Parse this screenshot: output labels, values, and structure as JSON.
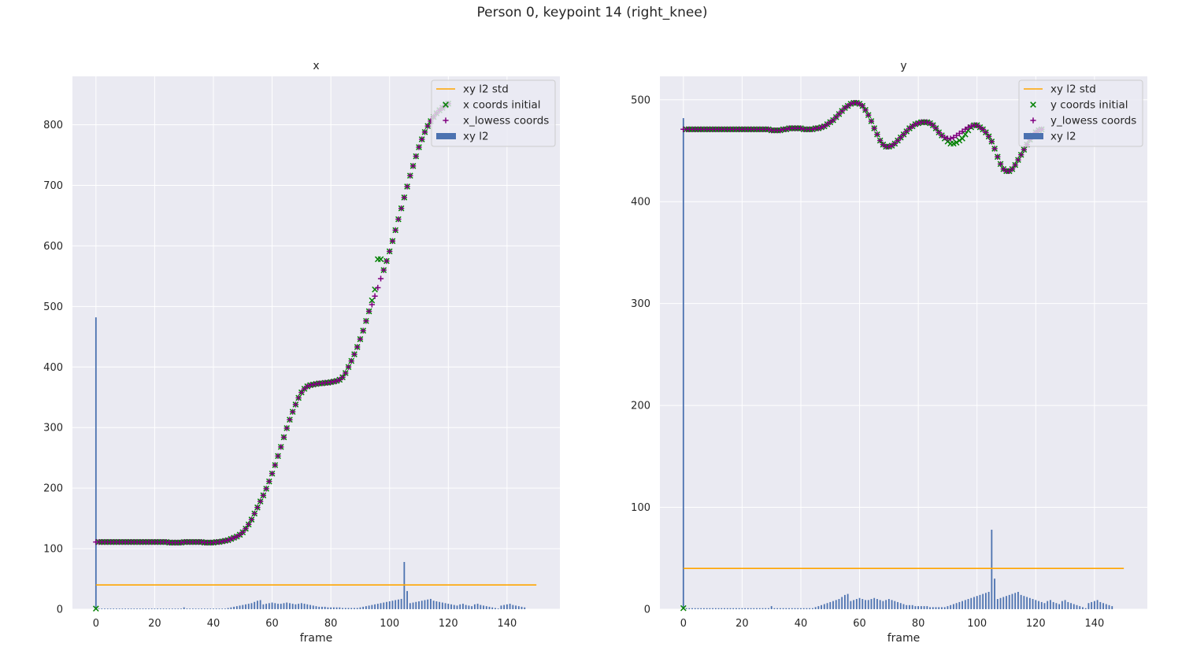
{
  "figure_title": "Person 0, keypoint 14 (right_knee)",
  "colors": {
    "axes_bg": "#eaeaf2",
    "grid": "#ffffff",
    "std_line": "orange",
    "initial_marker": "green",
    "lowess_marker": "purple",
    "bar": "#4c72b0"
  },
  "chart_data": [
    {
      "type": "line+scatter+bar",
      "title": "x",
      "xlabel": "frame",
      "ylabel": "",
      "xlim": [
        -8,
        158
      ],
      "ylim": [
        0,
        880
      ],
      "xticks": [
        0,
        20,
        40,
        60,
        80,
        100,
        120,
        140
      ],
      "yticks": [
        0,
        100,
        200,
        300,
        400,
        500,
        600,
        700,
        800
      ],
      "grid": true,
      "legend_position": "top-right",
      "legend": [
        "xy l2 std",
        "x coords initial",
        "x_lowess coords",
        "xy l2"
      ],
      "series": [
        {
          "name": "xy l2 std",
          "kind": "line",
          "y_constant": 40,
          "x_range": [
            0,
            150
          ]
        },
        {
          "name": "x coords initial",
          "kind": "scatter",
          "marker": "x",
          "x_start": 0,
          "x_step": 1,
          "values": [
            1,
            111,
            111,
            111,
            111,
            111,
            111,
            111,
            111,
            111,
            111,
            111,
            111,
            111,
            111,
            111,
            111,
            111,
            111,
            111,
            111,
            111,
            111,
            111,
            111,
            110,
            110,
            110,
            110,
            110,
            111,
            111,
            111,
            111,
            111,
            111,
            111,
            110,
            110,
            110,
            110,
            111,
            111,
            112,
            113,
            114,
            116,
            118,
            120,
            123,
            127,
            133,
            140,
            148,
            158,
            168,
            178,
            188,
            199,
            211,
            224,
            238,
            253,
            268,
            284,
            299,
            313,
            326,
            338,
            349,
            358,
            364,
            368,
            370,
            371,
            372,
            373,
            373,
            374,
            374,
            375,
            376,
            377,
            379,
            383,
            390,
            400,
            410,
            421,
            433,
            446,
            460,
            476,
            492,
            510,
            528,
            578,
            578,
            560,
            575,
            591,
            608,
            626,
            644,
            662,
            680,
            698,
            716,
            732,
            748,
            763,
            776,
            788,
            798,
            806,
            813,
            819,
            824,
            828,
            832,
            835
          ]
        },
        {
          "name": "x_lowess coords",
          "kind": "scatter",
          "marker": "+",
          "x_start": 0,
          "x_step": 1,
          "values": [
            111,
            111,
            111,
            111,
            111,
            111,
            111,
            111,
            111,
            111,
            111,
            111,
            111,
            111,
            111,
            111,
            111,
            111,
            111,
            111,
            111,
            111,
            111,
            111,
            111,
            110,
            110,
            110,
            110,
            110,
            111,
            111,
            111,
            111,
            111,
            111,
            111,
            110,
            110,
            110,
            110,
            111,
            111,
            112,
            113,
            114,
            116,
            118,
            120,
            123,
            127,
            133,
            140,
            148,
            158,
            168,
            178,
            188,
            199,
            211,
            224,
            238,
            253,
            268,
            284,
            299,
            313,
            326,
            338,
            349,
            358,
            364,
            368,
            370,
            371,
            372,
            373,
            373,
            374,
            374,
            375,
            376,
            377,
            379,
            383,
            390,
            400,
            410,
            421,
            433,
            446,
            460,
            476,
            492,
            503,
            517,
            531,
            546,
            560,
            575,
            591,
            608,
            626,
            644,
            662,
            680,
            698,
            716,
            732,
            748,
            763,
            776,
            788,
            798,
            806,
            813,
            819,
            824,
            828,
            832,
            835
          ]
        },
        {
          "name": "xy l2",
          "kind": "bar",
          "x_start": 0,
          "x_step": 1,
          "values": [
            482,
            1,
            1,
            1,
            1,
            1,
            1,
            1,
            1,
            1,
            1,
            1,
            1,
            1,
            1,
            1,
            1,
            1,
            1,
            1,
            1,
            1,
            1,
            1,
            1,
            1,
            1,
            1,
            1,
            1,
            3,
            1,
            1,
            1,
            1,
            1,
            1,
            1,
            1,
            1,
            1,
            1,
            1,
            1,
            1,
            2,
            3,
            4,
            5,
            6,
            7,
            8,
            9,
            10,
            12,
            14,
            15,
            8,
            9,
            10,
            11,
            10,
            9,
            9,
            10,
            11,
            10,
            9,
            8,
            9,
            10,
            9,
            8,
            7,
            6,
            5,
            4,
            4,
            4,
            3,
            3,
            3,
            3,
            3,
            2,
            2,
            2,
            2,
            2,
            2,
            3,
            4,
            5,
            6,
            7,
            8,
            9,
            10,
            11,
            12,
            13,
            14,
            15,
            16,
            17,
            78,
            30,
            10,
            11,
            12,
            13,
            14,
            15,
            16,
            17,
            14,
            13,
            12,
            11,
            10,
            9,
            8,
            7,
            6,
            8,
            9,
            7,
            6,
            5,
            8,
            9,
            7,
            6,
            5,
            4,
            3,
            2,
            1,
            6,
            7,
            8,
            9,
            7,
            6,
            5,
            4,
            3
          ]
        }
      ]
    },
    {
      "type": "line+scatter+bar",
      "title": "y",
      "xlabel": "frame",
      "ylabel": "",
      "xlim": [
        -8,
        158
      ],
      "ylim": [
        0,
        523
      ],
      "xticks": [
        0,
        20,
        40,
        60,
        80,
        100,
        120,
        140
      ],
      "yticks": [
        0,
        100,
        200,
        300,
        400,
        500
      ],
      "grid": true,
      "legend_position": "top-right",
      "legend": [
        "xy l2 std",
        "y coords initial",
        "y_lowess coords",
        "xy l2"
      ],
      "series": [
        {
          "name": "xy l2 std",
          "kind": "line",
          "y_constant": 40,
          "x_range": [
            0,
            150
          ]
        },
        {
          "name": "y coords initial",
          "kind": "scatter",
          "marker": "x",
          "x_start": 0,
          "x_step": 1,
          "values": [
            1,
            471,
            471,
            471,
            471,
            471,
            471,
            471,
            471,
            471,
            471,
            471,
            471,
            471,
            471,
            471,
            471,
            471,
            471,
            471,
            471,
            471,
            471,
            471,
            471,
            471,
            471,
            471,
            471,
            471,
            470,
            470,
            470,
            470,
            471,
            471,
            472,
            472,
            472,
            472,
            472,
            471,
            471,
            471,
            471,
            472,
            472,
            473,
            474,
            476,
            478,
            480,
            483,
            486,
            489,
            492,
            494,
            496,
            497,
            497,
            496,
            494,
            490,
            485,
            479,
            472,
            466,
            460,
            456,
            454,
            454,
            455,
            457,
            460,
            463,
            466,
            469,
            472,
            474,
            476,
            477,
            478,
            478,
            478,
            477,
            475,
            472,
            468,
            465,
            462,
            459,
            457,
            457,
            458,
            460,
            462,
            466,
            470,
            473,
            475,
            475,
            473,
            471,
            468,
            464,
            459,
            452,
            444,
            437,
            432,
            430,
            430,
            432,
            436,
            441,
            446,
            451,
            456,
            461,
            465,
            468,
            470,
            471
          ]
        },
        {
          "name": "y_lowess coords",
          "kind": "scatter",
          "marker": "+",
          "x_start": 0,
          "x_step": 1,
          "values": [
            471,
            471,
            471,
            471,
            471,
            471,
            471,
            471,
            471,
            471,
            471,
            471,
            471,
            471,
            471,
            471,
            471,
            471,
            471,
            471,
            471,
            471,
            471,
            471,
            471,
            471,
            471,
            471,
            471,
            471,
            470,
            470,
            470,
            470,
            471,
            471,
            472,
            472,
            472,
            472,
            472,
            471,
            471,
            471,
            471,
            472,
            472,
            473,
            474,
            476,
            478,
            480,
            483,
            486,
            489,
            492,
            494,
            496,
            497,
            497,
            496,
            494,
            490,
            485,
            479,
            472,
            466,
            460,
            456,
            454,
            454,
            455,
            457,
            460,
            463,
            466,
            469,
            472,
            474,
            476,
            477,
            478,
            478,
            478,
            477,
            475,
            472,
            468,
            465,
            463,
            462,
            462,
            463,
            465,
            467,
            469,
            471,
            473,
            474,
            475,
            475,
            473,
            471,
            468,
            464,
            459,
            452,
            444,
            437,
            432,
            430,
            430,
            432,
            436,
            441,
            446,
            451,
            456,
            461,
            465,
            468,
            470,
            471
          ]
        },
        {
          "name": "xy l2",
          "kind": "bar",
          "x_start": 0,
          "x_step": 1,
          "values": [
            482,
            1,
            1,
            1,
            1,
            1,
            1,
            1,
            1,
            1,
            1,
            1,
            1,
            1,
            1,
            1,
            1,
            1,
            1,
            1,
            1,
            1,
            1,
            1,
            1,
            1,
            1,
            1,
            1,
            1,
            3,
            1,
            1,
            1,
            1,
            1,
            1,
            1,
            1,
            1,
            1,
            1,
            1,
            1,
            1,
            2,
            3,
            4,
            5,
            6,
            7,
            8,
            9,
            10,
            12,
            14,
            15,
            8,
            9,
            10,
            11,
            10,
            9,
            9,
            10,
            11,
            10,
            9,
            8,
            9,
            10,
            9,
            8,
            7,
            6,
            5,
            4,
            4,
            4,
            3,
            3,
            3,
            3,
            3,
            2,
            2,
            2,
            2,
            2,
            2,
            3,
            4,
            5,
            6,
            7,
            8,
            9,
            10,
            11,
            12,
            13,
            14,
            15,
            16,
            17,
            78,
            30,
            10,
            11,
            12,
            13,
            14,
            15,
            16,
            17,
            14,
            13,
            12,
            11,
            10,
            9,
            8,
            7,
            6,
            8,
            9,
            7,
            6,
            5,
            8,
            9,
            7,
            6,
            5,
            4,
            3,
            2,
            1,
            6,
            7,
            8,
            9,
            7,
            6,
            5,
            4,
            3
          ]
        }
      ]
    }
  ]
}
